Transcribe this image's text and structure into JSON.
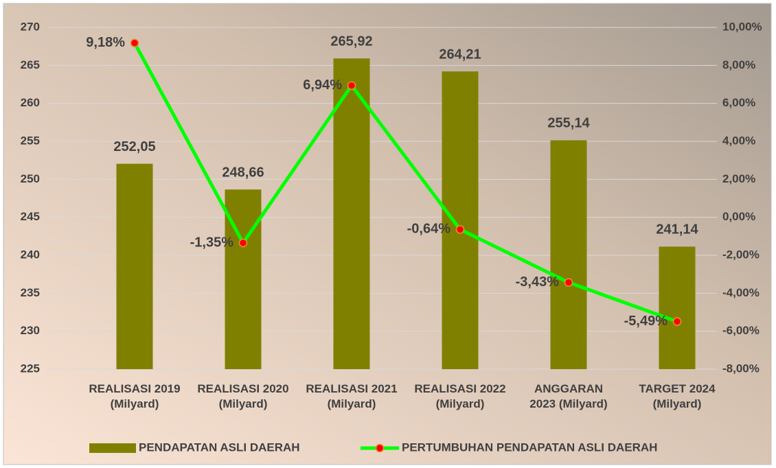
{
  "chart_data": {
    "type": "bar_line",
    "categories": [
      "REALISASI 2019\n(Milyard)",
      "REALISASI 2020\n(Milyard)",
      "REALISASI 2021\n(Milyard)",
      "REALISASI 2022\n(Milyard)",
      "ANGGARAN\n2023 (Milyard)",
      "TARGET 2024\n(Milyard)"
    ],
    "series": [
      {
        "name": "PENDAPATAN ASLI DAERAH",
        "type": "bar",
        "color": "#808000",
        "values": [
          252.05,
          248.66,
          265.92,
          264.21,
          255.14,
          241.14
        ],
        "value_labels": [
          "252,05",
          "248,66",
          "265,92",
          "264,21",
          "255,14",
          "241,14"
        ]
      },
      {
        "name": "PERTUMBUHAN PENDAPATAN ASLI DAERAH",
        "type": "line",
        "axis": "y2",
        "color": "#00ff00",
        "marker_color": "#ff0000",
        "values": [
          9.18,
          -1.35,
          6.94,
          -0.64,
          -3.43,
          -5.49
        ],
        "value_labels": [
          "9,18%",
          "-1,35%",
          "6,94%",
          "-0,64%",
          "-3,43%",
          "-5,49%"
        ]
      }
    ],
    "ylim": [
      225,
      270
    ],
    "yticks": [
      225,
      230,
      235,
      240,
      245,
      250,
      255,
      260,
      265,
      270
    ],
    "y2lim": [
      -8,
      10
    ],
    "y2ticks": [
      {
        "value": -8,
        "label": "-8,00%"
      },
      {
        "value": -6,
        "label": "-6,00%"
      },
      {
        "value": -4,
        "label": "-4,00%"
      },
      {
        "value": -2,
        "label": "-2,00%"
      },
      {
        "value": 0,
        "label": "0,00%"
      },
      {
        "value": 2,
        "label": "2,00%"
      },
      {
        "value": 4,
        "label": "4,00%"
      },
      {
        "value": 6,
        "label": "6,00%"
      },
      {
        "value": 8,
        "label": "8,00%"
      },
      {
        "value": 10,
        "label": "10,00%"
      }
    ],
    "grid": true,
    "legend": "bottom"
  }
}
